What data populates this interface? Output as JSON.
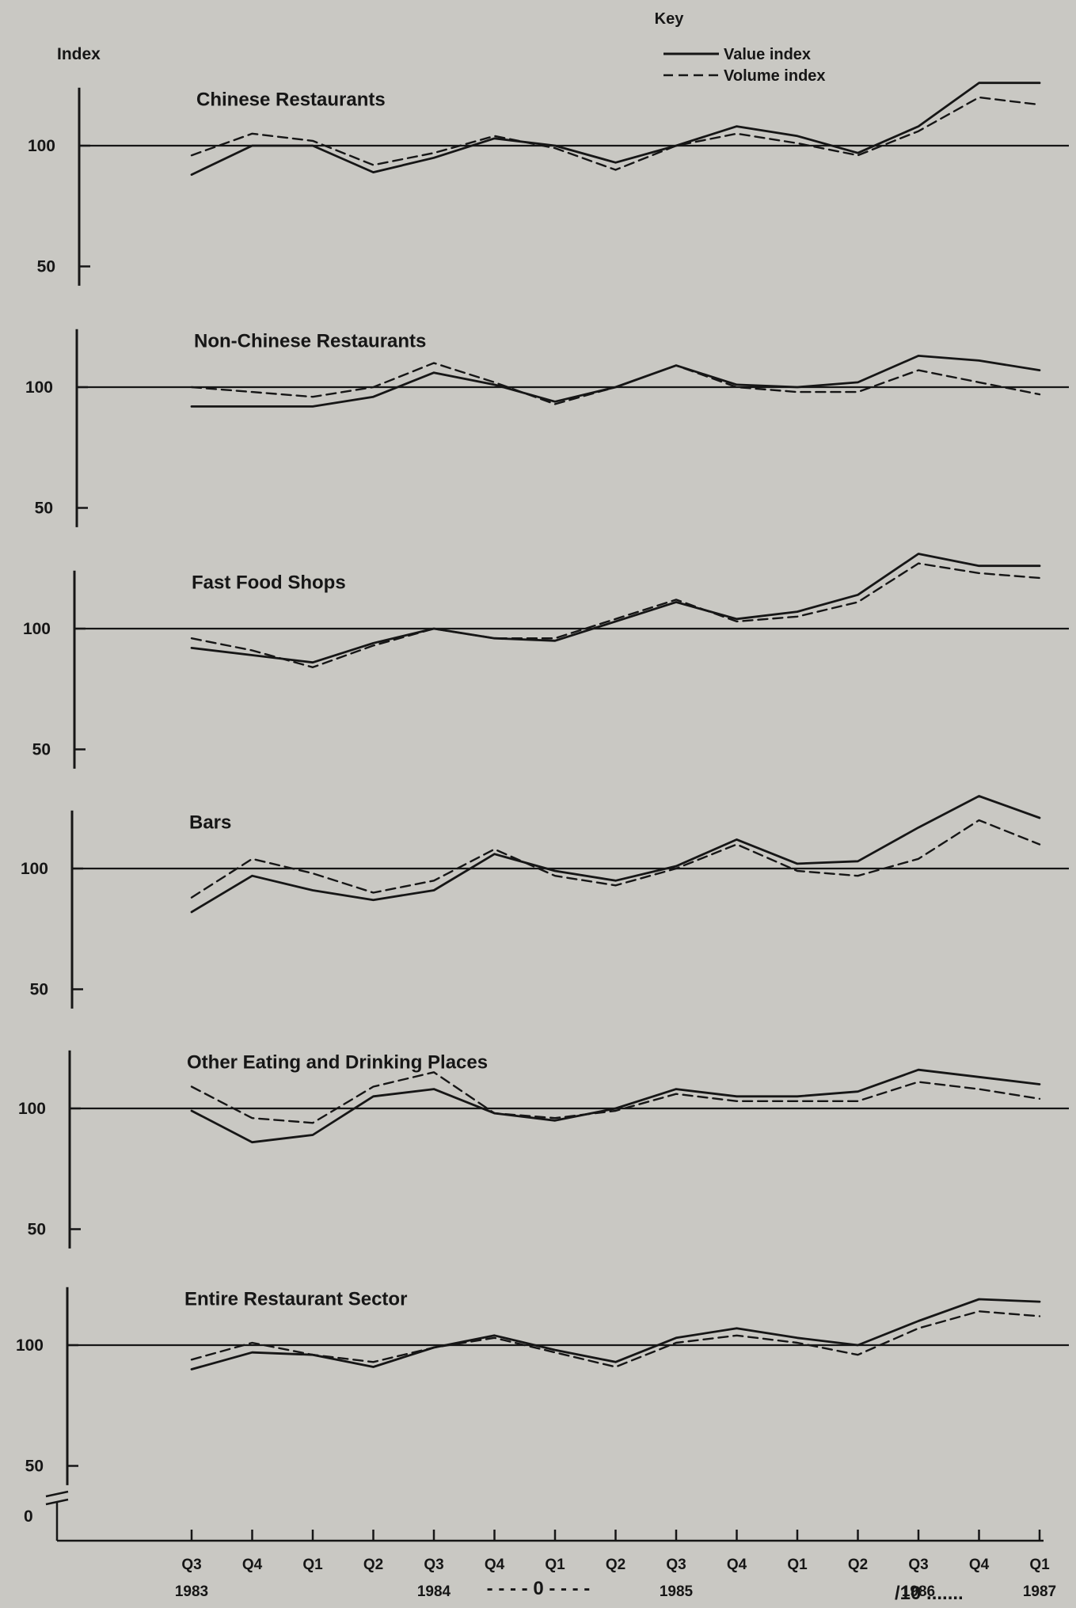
{
  "figure": {
    "y_axis_label": "Index",
    "baseline_tick_label": "0",
    "footer_dash_label": "- - - - 0 - - - -",
    "page_mark": "/10 ......."
  },
  "legend": {
    "title": "Key",
    "value_label": "Value index",
    "volume_label": "Volume index"
  },
  "colors": {
    "background": "#c9c8c3",
    "ink": "#161616"
  },
  "chart_data": {
    "type": "line",
    "categories": [
      "Q3",
      "Q4",
      "Q1",
      "Q2",
      "Q3",
      "Q4",
      "Q1",
      "Q2",
      "Q3",
      "Q4",
      "Q1",
      "Q2",
      "Q3",
      "Q4",
      "Q1"
    ],
    "year_labels": [
      "1983",
      "1984",
      "1985",
      "1986",
      "1987"
    ],
    "reference_line": 100,
    "y_ticks": [
      50,
      100
    ],
    "ylim": [
      40,
      125
    ],
    "grid": false,
    "legend_position": "top-right",
    "series_names": [
      "Value index",
      "Volume index"
    ],
    "panels": [
      {
        "title": "Chinese Restaurants",
        "value_index": [
          88,
          100,
          100,
          89,
          95,
          103,
          100,
          93,
          100,
          108,
          104,
          97,
          108,
          126,
          126
        ],
        "volume_index": [
          96,
          105,
          102,
          92,
          97,
          104,
          99,
          90,
          100,
          105,
          101,
          96,
          106,
          120,
          117
        ]
      },
      {
        "title": "Non-Chinese Restaurants",
        "value_index": [
          92,
          92,
          92,
          96,
          106,
          101,
          94,
          100,
          109,
          101,
          100,
          102,
          113,
          111,
          107
        ],
        "volume_index": [
          100,
          98,
          96,
          100,
          110,
          102,
          93,
          100,
          109,
          100,
          98,
          98,
          107,
          102,
          97
        ]
      },
      {
        "title": "Fast Food Shops",
        "value_index": [
          92,
          89,
          86,
          94,
          100,
          96,
          95,
          103,
          111,
          104,
          107,
          114,
          131,
          126,
          126
        ],
        "volume_index": [
          96,
          91,
          84,
          93,
          100,
          96,
          96,
          104,
          112,
          103,
          105,
          111,
          127,
          123,
          121
        ]
      },
      {
        "title": "Bars",
        "value_index": [
          82,
          97,
          91,
          87,
          91,
          106,
          99,
          95,
          101,
          112,
          102,
          103,
          117,
          130,
          121
        ],
        "volume_index": [
          88,
          104,
          98,
          90,
          95,
          108,
          97,
          93,
          100,
          110,
          99,
          97,
          104,
          120,
          110
        ]
      },
      {
        "title": "Other Eating and Drinking Places",
        "value_index": [
          99,
          86,
          89,
          105,
          108,
          98,
          95,
          100,
          108,
          105,
          105,
          107,
          116,
          113,
          110
        ],
        "volume_index": [
          109,
          96,
          94,
          109,
          115,
          98,
          96,
          99,
          106,
          103,
          103,
          103,
          111,
          108,
          104
        ]
      },
      {
        "title": "Entire Restaurant Sector",
        "value_index": [
          90,
          97,
          96,
          91,
          99,
          104,
          98,
          93,
          103,
          107,
          103,
          100,
          110,
          119,
          118
        ],
        "volume_index": [
          94,
          101,
          96,
          93,
          99,
          103,
          97,
          91,
          101,
          104,
          101,
          96,
          107,
          114,
          112
        ]
      }
    ]
  }
}
